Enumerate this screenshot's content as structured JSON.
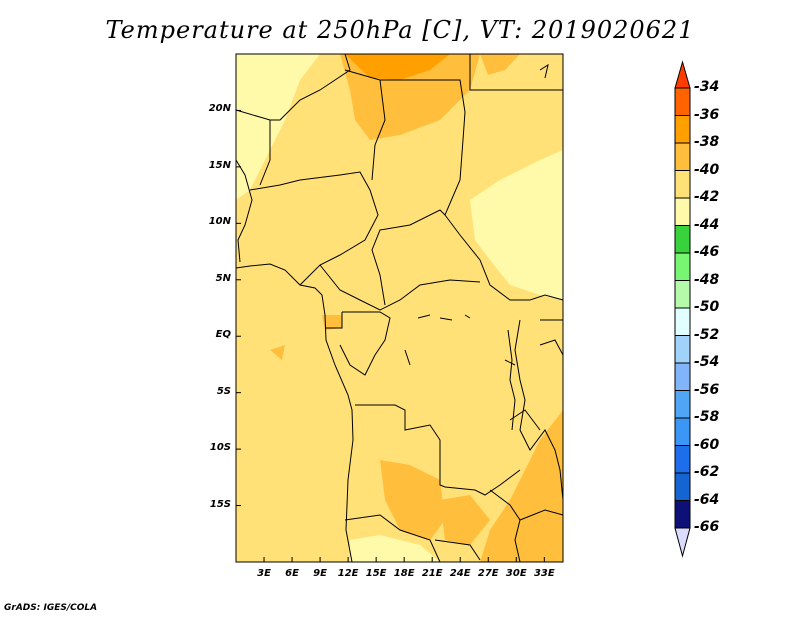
{
  "title": "Temperature at 250hPa [C], VT: 2019020621",
  "credit": "GrADS: IGES/COLA",
  "map": {
    "lon_range": [
      0,
      35
    ],
    "lat_range": [
      -20,
      25
    ],
    "x_ticks": [
      "3E",
      "6E",
      "9E",
      "12E",
      "15E",
      "18E",
      "21E",
      "24E",
      "27E",
      "30E",
      "33E"
    ],
    "y_ticks": [
      "20N",
      "15N",
      "10N",
      "5N",
      "EQ",
      "5S",
      "10S",
      "15S"
    ]
  },
  "colorbar": {
    "labels": [
      "-34",
      "-36",
      "-38",
      "-40",
      "-42",
      "-44",
      "-46",
      "-48",
      "-50",
      "-52",
      "-54",
      "-56",
      "-58",
      "-60",
      "-62",
      "-64",
      "-66"
    ],
    "top_arrow_color": "#ff3c00",
    "bottom_arrow_color": "#dcdcff",
    "colors": [
      "#ff6400",
      "#ffa000",
      "#ffbe3c",
      "#ffe178",
      "#fffaaa",
      "#37d23c",
      "#78f573",
      "#b4faaa",
      "#e1ffff",
      "#a0d2fa",
      "#82b4fa",
      "#50a5f5",
      "#3c96f5",
      "#1e6eeb",
      "#1464d2",
      "#0f0f78"
    ]
  }
}
